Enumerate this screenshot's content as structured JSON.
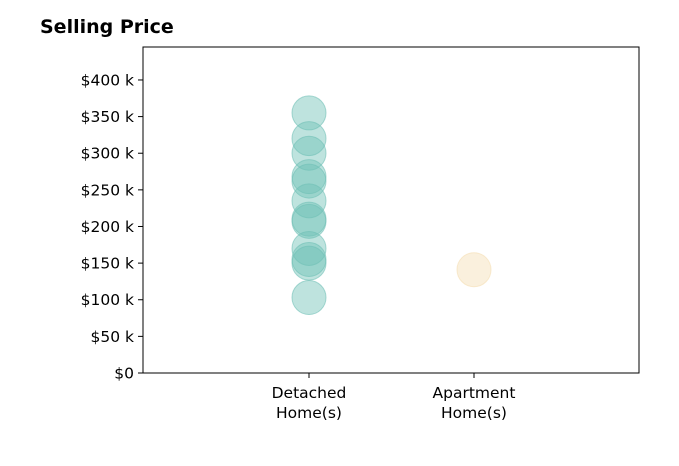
{
  "chart_data": {
    "type": "scatter",
    "title": "Selling Price",
    "xlabel": "",
    "ylabel": "",
    "categories": [
      "Detached\nHome(s)",
      "Apartment\nHome(s)"
    ],
    "ylim": [
      0,
      445000
    ],
    "y_ticks": [
      0,
      50000,
      100000,
      150000,
      200000,
      250000,
      300000,
      350000,
      400000
    ],
    "y_tick_labels": [
      "$0",
      "$50 k",
      "$100 k",
      "$150 k",
      "$200 k",
      "$250 k",
      "$300 k",
      "$350 k",
      "$400 k"
    ],
    "grid": false,
    "series": [
      {
        "category": "Detached\nHome(s)",
        "color": "#6fc0b5",
        "values": [
          355000,
          320000,
          300000,
          268000,
          262000,
          235000,
          210000,
          207000,
          170000,
          155000,
          150000,
          103000
        ]
      },
      {
        "category": "Apartment\nHome(s)",
        "color": "#f5deb3",
        "values": [
          141000
        ]
      }
    ]
  }
}
